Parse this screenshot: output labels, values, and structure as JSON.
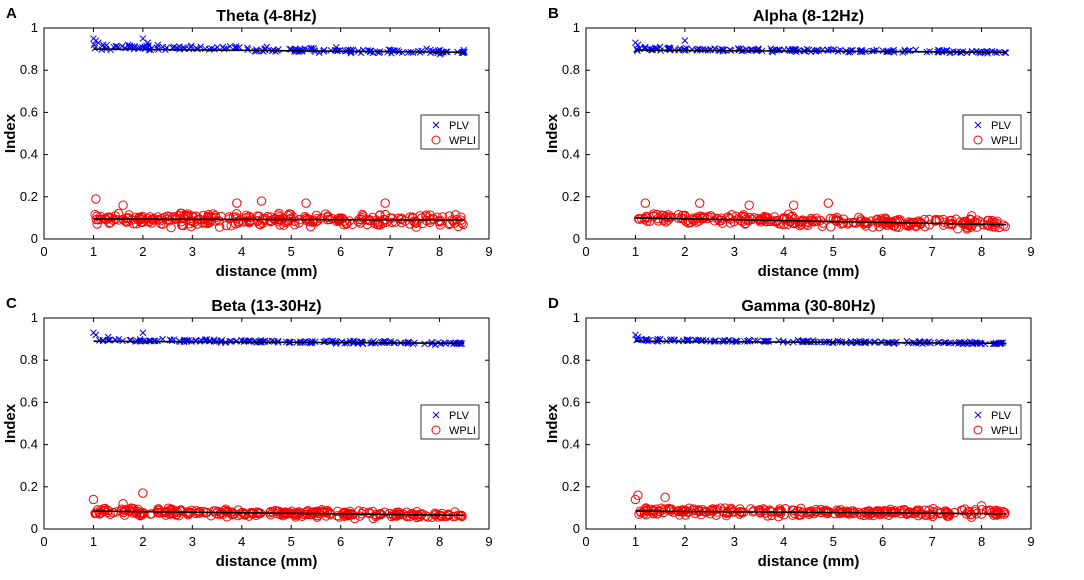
{
  "chart_data": [
    {
      "type": "scatter",
      "panel_label": "A",
      "title": "Theta (4-8Hz)",
      "xlabel": "distance (mm)",
      "ylabel": "Index",
      "xlim": [
        0,
        9
      ],
      "ylim": [
        0,
        1
      ],
      "xticks": [
        "0",
        "1",
        "2",
        "3",
        "4",
        "5",
        "6",
        "7",
        "8",
        "9"
      ],
      "yticks": [
        "0",
        "0.2",
        "0.4",
        "0.6",
        "0.8",
        "1"
      ],
      "legend": {
        "placement": "right-middle",
        "entries": [
          "PLV",
          "WPLI"
        ]
      },
      "series": [
        {
          "name": "PLV",
          "marker": "x",
          "color": "#0000ff",
          "x_range": [
            1,
            8.5
          ],
          "trend": [
            0.91,
            0.885
          ],
          "spread": 0.018,
          "n": 170,
          "points": [
            [
              1.0,
              0.95
            ],
            [
              1.05,
              0.94
            ],
            [
              1.1,
              0.93
            ],
            [
              1.2,
              0.92
            ],
            [
              1.5,
              0.91
            ],
            [
              1.7,
              0.92
            ],
            [
              2.0,
              0.95
            ],
            [
              2.1,
              0.93
            ],
            [
              2.3,
              0.92
            ]
          ]
        },
        {
          "name": "WPLI",
          "marker": "o",
          "color": "#ff0000",
          "x_range": [
            1,
            8.5
          ],
          "trend": [
            0.095,
            0.09
          ],
          "spread": 0.045,
          "n": 300,
          "points": [
            [
              1.05,
              0.19
            ],
            [
              1.6,
              0.16
            ],
            [
              3.9,
              0.17
            ],
            [
              4.4,
              0.18
            ],
            [
              5.3,
              0.17
            ],
            [
              6.9,
              0.17
            ]
          ]
        },
        {
          "name": "WPLI fit",
          "type": "line",
          "color": "#000000",
          "x": [
            1,
            8.5
          ],
          "y": [
            0.095,
            0.09
          ]
        },
        {
          "name": "PLV fit",
          "type": "line",
          "color": "#000000",
          "x": [
            1,
            8.5
          ],
          "y": [
            0.9,
            0.885
          ]
        }
      ]
    },
    {
      "type": "scatter",
      "panel_label": "B",
      "title": "Alpha (8-12Hz)",
      "xlabel": "distance (mm)",
      "ylabel": "Index",
      "xlim": [
        0,
        9
      ],
      "ylim": [
        0,
        1
      ],
      "xticks": [
        "0",
        "1",
        "2",
        "3",
        "4",
        "5",
        "6",
        "7",
        "8",
        "9"
      ],
      "yticks": [
        "0",
        "0.2",
        "0.4",
        "0.6",
        "0.8",
        "1"
      ],
      "legend": {
        "placement": "right-middle",
        "entries": [
          "PLV",
          "WPLI"
        ]
      },
      "series": [
        {
          "name": "PLV",
          "marker": "x",
          "color": "#0000ff",
          "x_range": [
            1,
            8.5
          ],
          "trend": [
            0.9,
            0.885
          ],
          "spread": 0.012,
          "n": 170,
          "points": [
            [
              1.0,
              0.93
            ],
            [
              1.05,
              0.92
            ],
            [
              1.2,
              0.91
            ],
            [
              2.0,
              0.94
            ],
            [
              1.5,
              0.91
            ]
          ]
        },
        {
          "name": "WPLI",
          "marker": "o",
          "color": "#ff0000",
          "x_range": [
            1,
            8.5
          ],
          "trend": [
            0.1,
            0.07
          ],
          "spread": 0.035,
          "n": 280,
          "points": [
            [
              1.2,
              0.17
            ],
            [
              2.3,
              0.17
            ],
            [
              3.3,
              0.16
            ],
            [
              4.2,
              0.16
            ],
            [
              4.9,
              0.17
            ],
            [
              7.8,
              0.11
            ]
          ]
        },
        {
          "name": "WPLI fit",
          "type": "line",
          "color": "#000000",
          "x": [
            1,
            8.5
          ],
          "y": [
            0.1,
            0.068
          ]
        },
        {
          "name": "PLV fit",
          "type": "line",
          "color": "#000000",
          "x": [
            1,
            8.5
          ],
          "y": [
            0.895,
            0.885
          ]
        }
      ]
    },
    {
      "type": "scatter",
      "panel_label": "C",
      "title": "Beta (13-30Hz)",
      "xlabel": "distance (mm)",
      "ylabel": "Index",
      "xlim": [
        0,
        9
      ],
      "ylim": [
        0,
        1
      ],
      "xticks": [
        "0",
        "1",
        "2",
        "3",
        "4",
        "5",
        "6",
        "7",
        "8",
        "9"
      ],
      "yticks": [
        "0",
        "0.2",
        "0.4",
        "0.6",
        "0.8",
        "1"
      ],
      "legend": {
        "placement": "right-middle",
        "entries": [
          "PLV",
          "WPLI"
        ]
      },
      "series": [
        {
          "name": "PLV",
          "marker": "x",
          "color": "#0000ff",
          "x_range": [
            1,
            8.5
          ],
          "trend": [
            0.895,
            0.88
          ],
          "spread": 0.01,
          "n": 170,
          "points": [
            [
              1.0,
              0.93
            ],
            [
              1.05,
              0.92
            ],
            [
              2.0,
              0.93
            ],
            [
              1.3,
              0.91
            ]
          ]
        },
        {
          "name": "WPLI",
          "marker": "o",
          "color": "#ff0000",
          "x_range": [
            1,
            8.5
          ],
          "trend": [
            0.085,
            0.065
          ],
          "spread": 0.025,
          "n": 280,
          "points": [
            [
              1.0,
              0.14
            ],
            [
              2.0,
              0.17
            ],
            [
              1.6,
              0.12
            ]
          ]
        },
        {
          "name": "WPLI fit",
          "type": "line",
          "color": "#000000",
          "x": [
            1,
            8.5
          ],
          "y": [
            0.085,
            0.065
          ]
        },
        {
          "name": "PLV fit",
          "type": "line",
          "color": "#000000",
          "x": [
            1,
            8.5
          ],
          "y": [
            0.89,
            0.88
          ]
        }
      ]
    },
    {
      "type": "scatter",
      "panel_label": "D",
      "title": "Gamma (30-80Hz)",
      "xlabel": "distance (mm)",
      "ylabel": "Index",
      "xlim": [
        0,
        9
      ],
      "ylim": [
        0,
        1
      ],
      "xticks": [
        "0",
        "1",
        "2",
        "3",
        "4",
        "5",
        "6",
        "7",
        "8",
        "9"
      ],
      "yticks": [
        "0",
        "0.2",
        "0.4",
        "0.6",
        "0.8",
        "1"
      ],
      "legend": {
        "placement": "right-middle",
        "entries": [
          "PLV",
          "WPLI"
        ]
      },
      "series": [
        {
          "name": "PLV",
          "marker": "x",
          "color": "#0000ff",
          "x_range": [
            1,
            8.5
          ],
          "trend": [
            0.895,
            0.88
          ],
          "spread": 0.008,
          "n": 170,
          "points": [
            [
              1.0,
              0.92
            ],
            [
              1.05,
              0.91
            ],
            [
              1.5,
              0.9
            ]
          ]
        },
        {
          "name": "WPLI",
          "marker": "o",
          "color": "#ff0000",
          "x_range": [
            1,
            8.5
          ],
          "trend": [
            0.085,
            0.075
          ],
          "spread": 0.025,
          "n": 280,
          "points": [
            [
              1.05,
              0.16
            ],
            [
              1.6,
              0.15
            ],
            [
              1.0,
              0.14
            ],
            [
              8.0,
              0.11
            ]
          ]
        },
        {
          "name": "WPLI fit",
          "type": "line",
          "color": "#000000",
          "x": [
            1,
            8.5
          ],
          "y": [
            0.085,
            0.072
          ]
        },
        {
          "name": "PLV fit",
          "type": "line",
          "color": "#000000",
          "x": [
            1,
            8.5
          ],
          "y": [
            0.89,
            0.88
          ]
        }
      ]
    }
  ]
}
